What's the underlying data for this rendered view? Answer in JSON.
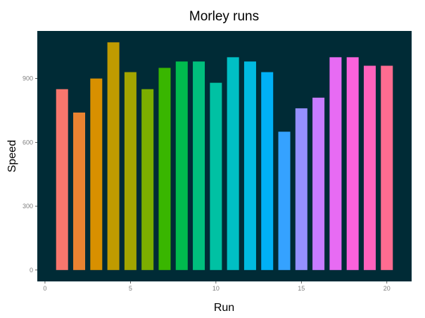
{
  "chart_data": {
    "type": "bar",
    "title": "Morley runs",
    "xlabel": "Run",
    "ylabel": "Speed",
    "x": [
      1,
      2,
      3,
      4,
      5,
      6,
      7,
      8,
      9,
      10,
      11,
      12,
      13,
      14,
      15,
      16,
      17,
      18,
      19,
      20
    ],
    "values": [
      850,
      740,
      900,
      1070,
      930,
      850,
      950,
      980,
      980,
      880,
      1000,
      980,
      930,
      650,
      760,
      810,
      1000,
      1000,
      960,
      960
    ],
    "colors": [
      "#F8766D",
      "#EA8331",
      "#D89000",
      "#C09B00",
      "#A3A500",
      "#7CAE00",
      "#39B600",
      "#00BB4E",
      "#00BF7D",
      "#00C1A3",
      "#00BFC4",
      "#00BAE0",
      "#00B0F6",
      "#35A2FF",
      "#9590FF",
      "#C77CFF",
      "#E76BF3",
      "#FA62DB",
      "#FF62BC",
      "#FF6C91"
    ],
    "xlim": [
      -0.45,
      21.45
    ],
    "ylim": [
      -53.5,
      1123.5
    ],
    "x_ticks": [
      "0",
      "5",
      "10",
      "15",
      "20"
    ],
    "y_ticks": [
      "0",
      "300",
      "600",
      "900"
    ],
    "panel_background": "#002B36",
    "grid": false,
    "legend": "none"
  }
}
